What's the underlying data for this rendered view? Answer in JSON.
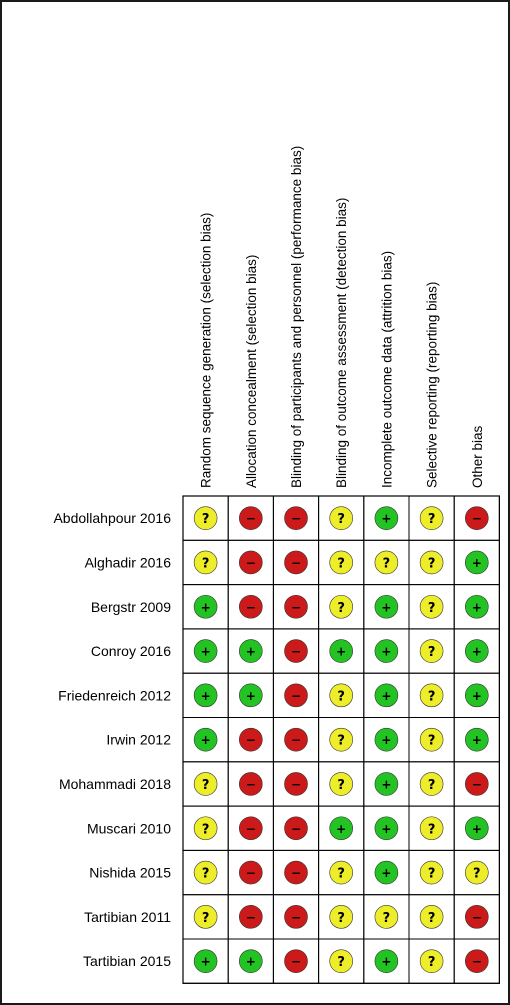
{
  "colors": {
    "low": "#22c322",
    "high": "#cc1a1a",
    "unclear": "#eded2a"
  },
  "symbols": {
    "low": "+",
    "high": "−",
    "unclear": "?"
  },
  "chart_data": {
    "type": "table",
    "columns": [
      "Random sequence generation (selection bias)",
      "Allocation concealment (selection bias)",
      "Blinding of participants and personnel (performance bias)",
      "Blinding of outcome assessment (detection bias)",
      "Incomplete outcome data (attrition bias)",
      "Selective reporting (reporting bias)",
      "Other bias"
    ],
    "rows": [
      {
        "study": "Abdollahpour 2016",
        "ratings": [
          "unclear",
          "high",
          "high",
          "unclear",
          "low",
          "unclear",
          "high"
        ]
      },
      {
        "study": "Alghadir 2016",
        "ratings": [
          "unclear",
          "high",
          "high",
          "unclear",
          "unclear",
          "unclear",
          "low"
        ]
      },
      {
        "study": "Bergstr 2009",
        "ratings": [
          "low",
          "high",
          "high",
          "unclear",
          "low",
          "unclear",
          "low"
        ]
      },
      {
        "study": "Conroy 2016",
        "ratings": [
          "low",
          "low",
          "high",
          "low",
          "low",
          "unclear",
          "low"
        ]
      },
      {
        "study": "Friedenreich 2012",
        "ratings": [
          "low",
          "low",
          "high",
          "unclear",
          "low",
          "unclear",
          "low"
        ]
      },
      {
        "study": "Irwin 2012",
        "ratings": [
          "low",
          "high",
          "high",
          "unclear",
          "low",
          "unclear",
          "low"
        ]
      },
      {
        "study": "Mohammadi 2018",
        "ratings": [
          "unclear",
          "high",
          "high",
          "unclear",
          "low",
          "unclear",
          "high"
        ]
      },
      {
        "study": "Muscari 2010",
        "ratings": [
          "unclear",
          "high",
          "high",
          "low",
          "low",
          "unclear",
          "low"
        ]
      },
      {
        "study": "Nishida 2015",
        "ratings": [
          "unclear",
          "high",
          "high",
          "unclear",
          "low",
          "unclear",
          "unclear"
        ]
      },
      {
        "study": "Tartibian 2011",
        "ratings": [
          "unclear",
          "high",
          "high",
          "unclear",
          "unclear",
          "unclear",
          "high"
        ]
      },
      {
        "study": "Tartibian 2015",
        "ratings": [
          "low",
          "low",
          "high",
          "unclear",
          "low",
          "unclear",
          "high"
        ]
      }
    ]
  }
}
